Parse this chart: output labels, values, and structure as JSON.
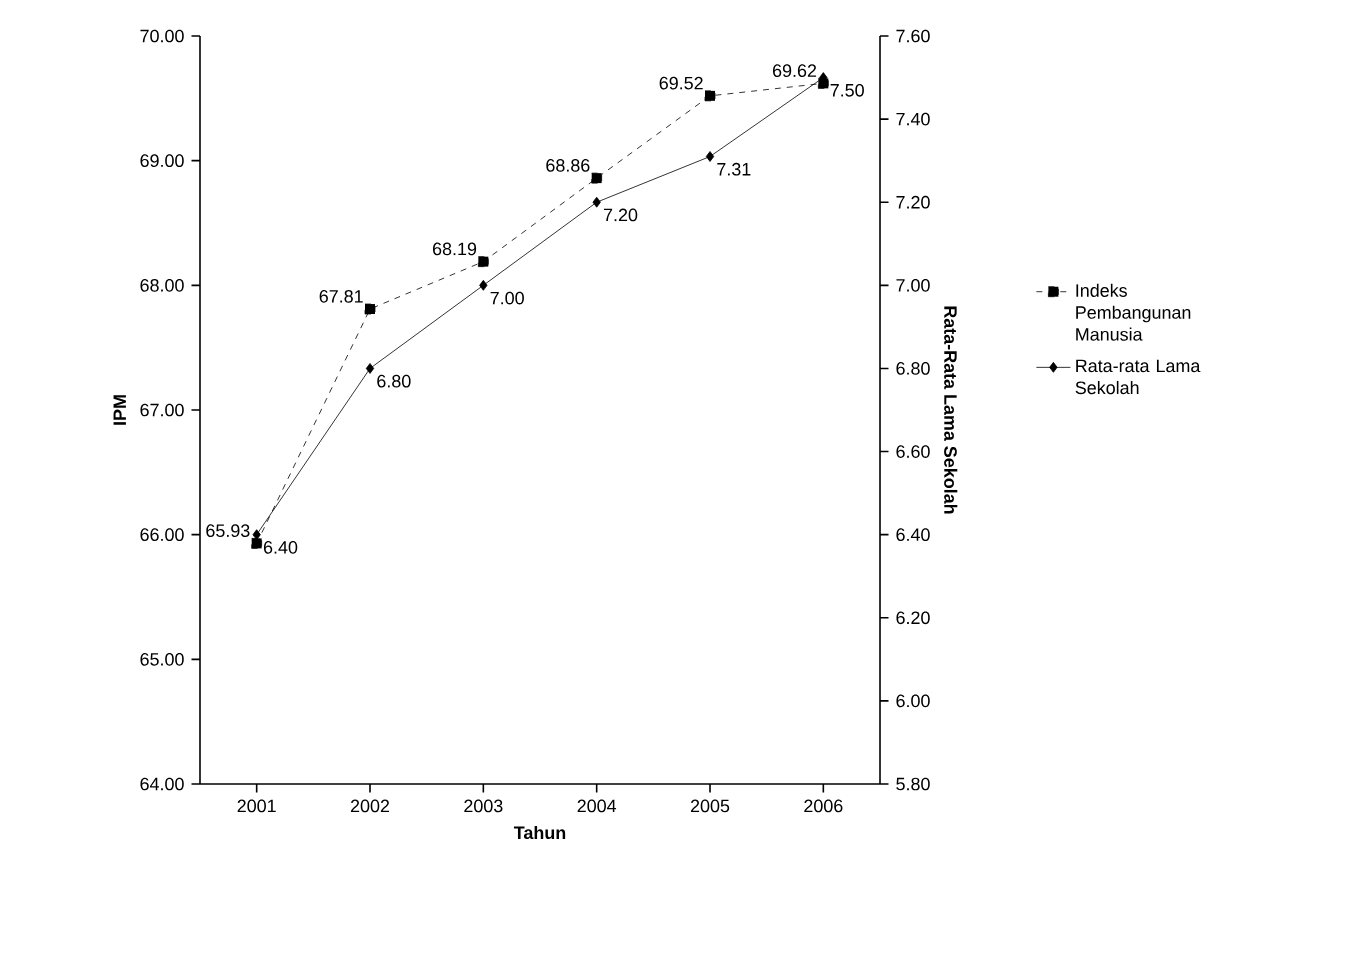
{
  "chart_data": {
    "type": "line",
    "xlabel": "Tahun",
    "ylabel": "IPM",
    "y2label": "Rata-Rata Lama Sekolah",
    "categories": [
      "2001",
      "2002",
      "2003",
      "2004",
      "2005",
      "2006"
    ],
    "series": [
      {
        "name": "Indeks Pembangunan Manusia",
        "color": "#000000",
        "marker": "square",
        "line_style": "dashed",
        "values": [
          65.93,
          67.81,
          68.19,
          68.86,
          69.52,
          69.62
        ],
        "value_labels": [
          "65.93",
          "67.81",
          "68.19",
          "68.86",
          "69.52",
          "69.62"
        ]
      },
      {
        "name": "Rata-rata Lama Sekolah",
        "color": "#000000",
        "marker": "diamond",
        "line_style": "solid",
        "axis": "y2",
        "values": [
          6.4,
          6.8,
          7.0,
          7.2,
          7.31,
          7.5
        ],
        "value_labels": [
          "6.40",
          "6.80",
          "7.00",
          "7.20",
          "7.31",
          "7.50"
        ]
      }
    ],
    "ylim": [
      64,
      70
    ],
    "yticks": [
      {
        "value": 64,
        "label": "64.00"
      },
      {
        "value": 65,
        "label": "65.00"
      },
      {
        "value": 66,
        "label": "66.00"
      },
      {
        "value": 67,
        "label": "67.00"
      },
      {
        "value": 68,
        "label": "68.00"
      },
      {
        "value": 69,
        "label": "69.00"
      },
      {
        "value": 70,
        "label": "70.00"
      }
    ],
    "y2lim": [
      5.8,
      7.6
    ],
    "y2ticks": [
      {
        "value": 5.8,
        "label": "5.80"
      },
      {
        "value": 6.0,
        "label": "6.00"
      },
      {
        "value": 6.2,
        "label": "6.20"
      },
      {
        "value": 6.4,
        "label": "6.40"
      },
      {
        "value": 6.6,
        "label": "6.60"
      },
      {
        "value": 6.8,
        "label": "6.80"
      },
      {
        "value": 7.0,
        "label": "7.00"
      },
      {
        "value": 7.2,
        "label": "7.20"
      },
      {
        "value": 7.4,
        "label": "7.40"
      },
      {
        "value": 7.6,
        "label": "7.60"
      }
    ],
    "legend": "right",
    "grid": false
  }
}
